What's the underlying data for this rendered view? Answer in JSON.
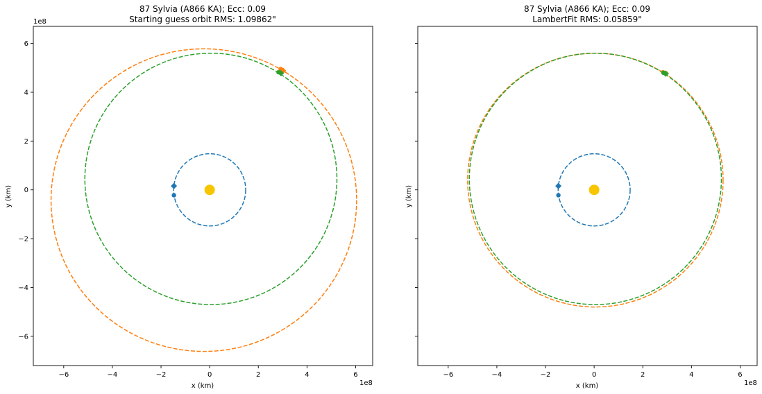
{
  "chart_data": [
    {
      "type": "scatter",
      "title": "87 Sylvia (A866 KA); Ecc: 0.09",
      "subtitle": "Starting guess orbit RMS: 1.09862\"",
      "xlabel": "x (km)",
      "ylabel": "y (km)",
      "axis_offset": "1e8",
      "xlim": [
        -7.25,
        6.7
      ],
      "ylim": [
        -7.2,
        6.7
      ],
      "xticks": [
        -6,
        -4,
        -2,
        0,
        2,
        4,
        6
      ],
      "yticks": [
        -6,
        -4,
        -2,
        0,
        2,
        4,
        6
      ],
      "xtick_labels": [
        "−6",
        "−4",
        "−2",
        "0",
        "2",
        "4",
        "6"
      ],
      "ytick_labels": [
        "−6",
        "−4",
        "−2",
        "0",
        "2",
        "4",
        "6"
      ],
      "grid": false,
      "sun": {
        "x": 0,
        "y": 0,
        "color": "#f7c600"
      },
      "series": [
        {
          "color": "#1f77b4",
          "style": "dashed",
          "orbit": {
            "cx": 0,
            "cy": 0,
            "rx": 1.48,
            "ry": 1.48
          },
          "markers": [
            {
              "x": -1.47,
              "y": 0.16,
              "shape": "diamond"
            },
            {
              "x": -1.47,
              "y": -0.22,
              "shape": "circle"
            }
          ]
        },
        {
          "color": "#ff7f0e",
          "style": "dashed",
          "orbit": {
            "cx": -0.24,
            "cy": -0.42,
            "rx": 6.28,
            "ry": 6.2
          },
          "markers": [
            {
              "x": 2.92,
              "y": 4.95,
              "shape": "circle"
            },
            {
              "x": 3.02,
              "y": 4.88,
              "shape": "diamond"
            }
          ]
        },
        {
          "color": "#2ca02c",
          "style": "dashed",
          "orbit": {
            "cx": 0.05,
            "cy": 0.45,
            "rx": 5.18,
            "ry": 5.15
          },
          "markers": [
            {
              "x": 2.83,
              "y": 4.82,
              "shape": "circle"
            },
            {
              "x": 2.93,
              "y": 4.78,
              "shape": "diamond"
            }
          ]
        }
      ]
    },
    {
      "type": "scatter",
      "title": "87 Sylvia (A866 KA); Ecc: 0.09",
      "subtitle": "LambertFit RMS: 0.05859\"",
      "xlabel": "x (km)",
      "ylabel": "y (km)",
      "axis_offset": "1e8",
      "xlim": [
        -7.25,
        6.7
      ],
      "ylim": [
        -7.2,
        6.7
      ],
      "xticks": [
        -6,
        -4,
        -2,
        0,
        2,
        4,
        6
      ],
      "yticks": [
        -6,
        -4,
        -2,
        0,
        2,
        4,
        6
      ],
      "xtick_labels": [
        "−6",
        "−4",
        "−2",
        "0",
        "2",
        "4",
        "6"
      ],
      "ytick_labels": [],
      "grid": false,
      "sun": {
        "x": 0,
        "y": 0,
        "color": "#f7c600"
      },
      "series": [
        {
          "color": "#1f77b4",
          "style": "dashed",
          "orbit": {
            "cx": 0,
            "cy": 0,
            "rx": 1.48,
            "ry": 1.48
          },
          "markers": [
            {
              "x": -1.47,
              "y": 0.16,
              "shape": "diamond"
            },
            {
              "x": -1.47,
              "y": -0.22,
              "shape": "circle"
            }
          ]
        },
        {
          "color": "#ff7f0e",
          "style": "dashed",
          "orbit": {
            "cx": 0.05,
            "cy": 0.4,
            "rx": 5.25,
            "ry": 5.2
          },
          "markers": [
            {
              "x": 2.83,
              "y": 4.82,
              "shape": "circle"
            },
            {
              "x": 2.95,
              "y": 4.77,
              "shape": "diamond"
            }
          ]
        },
        {
          "color": "#2ca02c",
          "style": "dashed",
          "orbit": {
            "cx": 0.05,
            "cy": 0.45,
            "rx": 5.18,
            "ry": 5.15
          },
          "markers": [
            {
              "x": 2.85,
              "y": 4.8,
              "shape": "circle"
            },
            {
              "x": 2.94,
              "y": 4.76,
              "shape": "diamond"
            }
          ]
        }
      ]
    }
  ]
}
